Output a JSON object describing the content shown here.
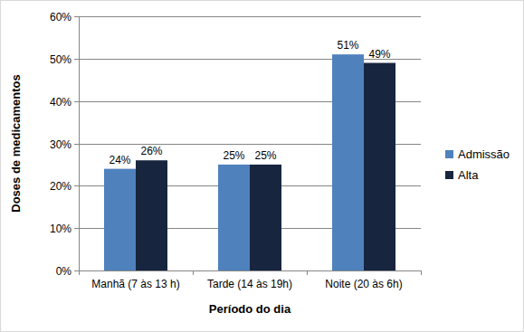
{
  "chart_data": {
    "type": "bar",
    "categories": [
      "Manhã (7 às 13 h)",
      "Tarde (14 às 19h)",
      "Noite (20 às 6h)"
    ],
    "series": [
      {
        "name": "Admissão",
        "color": "#4f81bd",
        "values": [
          24,
          25,
          51
        ],
        "value_labels": [
          "24%",
          "25%",
          "51%"
        ]
      },
      {
        "name": "Alta",
        "color": "#17253f",
        "values": [
          26,
          25,
          49
        ],
        "value_labels": [
          "26%",
          "25%",
          "49%"
        ]
      }
    ],
    "x_label": "Período do dia",
    "y_label": "Doses de medicamentos",
    "ylim": [
      0,
      60
    ],
    "yticks": [
      {
        "value": 0,
        "label": "0%"
      },
      {
        "value": 10,
        "label": "10%"
      },
      {
        "value": 20,
        "label": "20%"
      },
      {
        "value": 30,
        "label": "30%"
      },
      {
        "value": 40,
        "label": "40%"
      },
      {
        "value": 50,
        "label": "50%"
      },
      {
        "value": 60,
        "label": "60%"
      }
    ],
    "grid": true,
    "legend": "right",
    "data_labels": true
  }
}
